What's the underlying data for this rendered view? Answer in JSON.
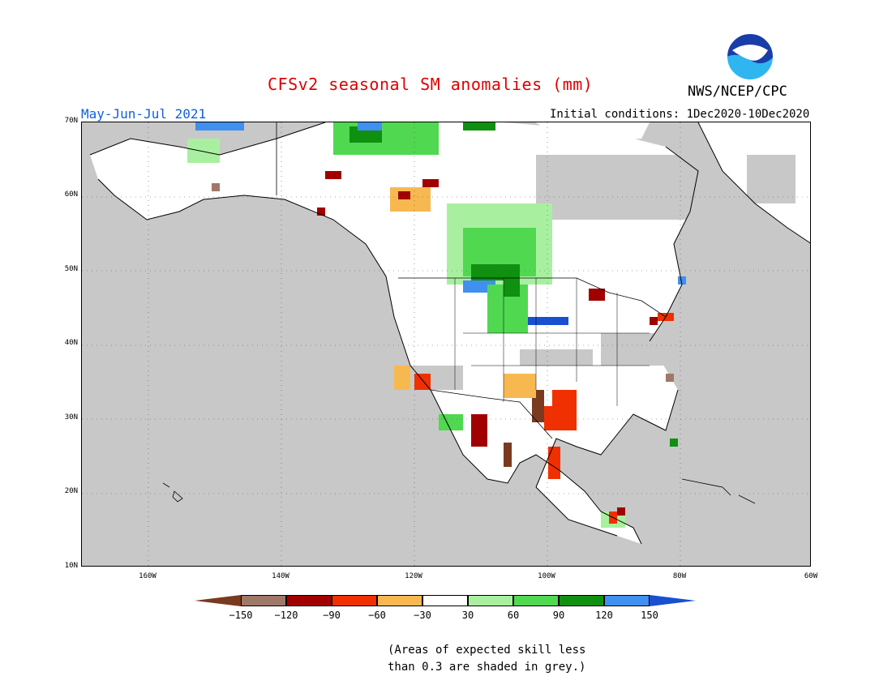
{
  "header": {
    "title": "CFSv2 seasonal SM anomalies (mm)",
    "period": "May-Jun-Jul 2021",
    "initial_conditions": "Initial conditions: 1Dec2020-10Dec2020",
    "organization": "NWS/NCEP/CPC",
    "logo_text": "NOAA"
  },
  "map": {
    "region": "North America",
    "lat_labels": [
      "70N",
      "60N",
      "50N",
      "40N",
      "30N",
      "20N",
      "10N"
    ],
    "lon_labels": [
      "160W",
      "140W",
      "120W",
      "100W",
      "80W",
      "60W"
    ],
    "background_color": "#c8c8c8"
  },
  "legend": {
    "segments": [
      {
        "color": "#7a3a20",
        "range": "< -150"
      },
      {
        "color": "#a07868",
        "range": "-150 to -120"
      },
      {
        "color": "#a00000",
        "range": "-120 to -90"
      },
      {
        "color": "#f03000",
        "range": "-90 to -60"
      },
      {
        "color": "#f8b850",
        "range": "-60 to -30"
      },
      {
        "color": "#ffffff",
        "range": "-30 to 30"
      },
      {
        "color": "#a8f0a0",
        "range": "30 to 60"
      },
      {
        "color": "#50d850",
        "range": "60 to 90"
      },
      {
        "color": "#109010",
        "range": "90 to 120"
      },
      {
        "color": "#4090f0",
        "range": "120 to 150"
      },
      {
        "color": "#1850d0",
        "range": "> 150"
      }
    ],
    "labels": [
      "−150",
      "−120",
      "−90",
      "−60",
      "−30",
      "30",
      "60",
      "90",
      "120",
      "150"
    ]
  },
  "footnote": {
    "line1": "(Areas of expected skill less",
    "line2": "than 0.3 are shaded in grey.)"
  }
}
